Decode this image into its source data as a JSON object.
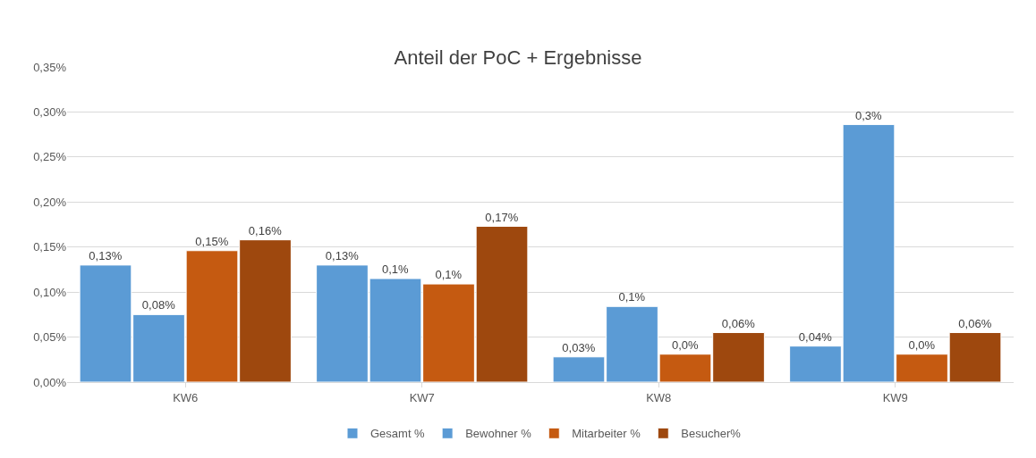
{
  "chart_data": {
    "type": "bar",
    "title": "Anteil der PoC + Ergebnisse",
    "categories": [
      "KW6",
      "KW7",
      "KW8",
      "KW9"
    ],
    "series": [
      {
        "name": "Gesamt %",
        "color": "#5b9bd5",
        "values": [
          0.13,
          0.13,
          0.028,
          0.04
        ],
        "value_labels": [
          "0,13%",
          "0,13%",
          "0,03%",
          "0,04%"
        ]
      },
      {
        "name": "Bewohner %",
        "color": "#5b9bd5",
        "values": [
          0.075,
          0.115,
          0.084,
          0.286
        ],
        "value_labels": [
          "0,08%",
          "0,1%",
          "0,1%",
          "0,3%"
        ]
      },
      {
        "name": "Mitarbeiter %",
        "color": "#c55a11",
        "values": [
          0.146,
          0.109,
          0.031,
          0.031
        ],
        "value_labels": [
          "0,15%",
          "0,1%",
          "0,0%",
          "0,0%"
        ]
      },
      {
        "name": "Besucher%",
        "color": "#9e480e",
        "values": [
          0.158,
          0.173,
          0.055,
          0.055
        ],
        "value_labels": [
          "0,16%",
          "0,17%",
          "0,06%",
          "0,06%"
        ]
      }
    ],
    "ylim": [
      0,
      0.35
    ],
    "yticks": [
      {
        "value": 0,
        "label": "0,00%"
      },
      {
        "value": 0.05,
        "label": "0,05%"
      },
      {
        "value": 0.1,
        "label": "0,10%"
      },
      {
        "value": 0.15,
        "label": "0,15%"
      },
      {
        "value": 0.2,
        "label": "0,20%"
      },
      {
        "value": 0.25,
        "label": "0,25%"
      },
      {
        "value": 0.3,
        "label": "0,30%"
      },
      {
        "value": 0.35,
        "label": "0,35%"
      }
    ],
    "grid": "y",
    "legend": "bottom"
  }
}
